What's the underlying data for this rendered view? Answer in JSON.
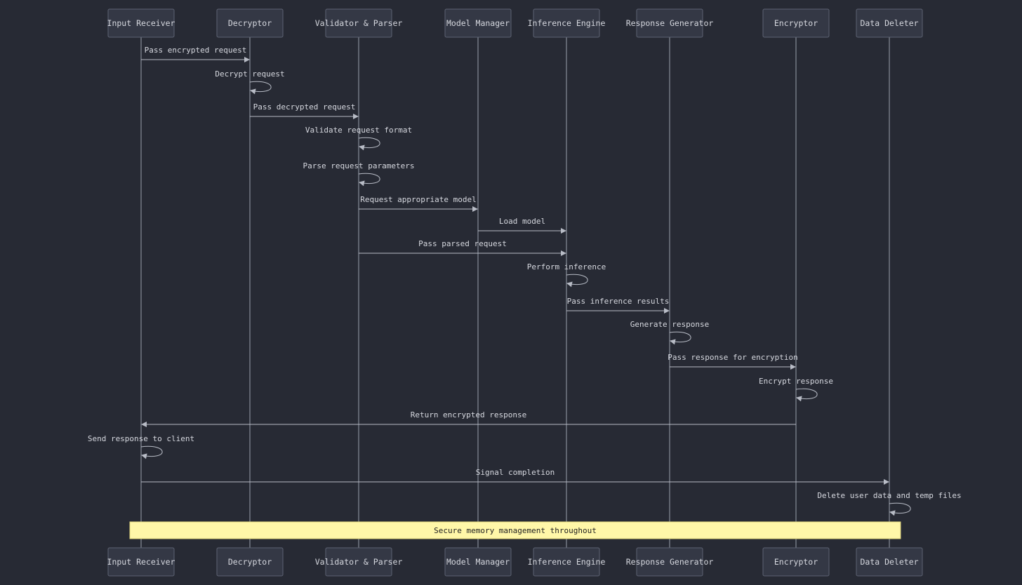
{
  "participants": [
    {
      "id": "input-receiver",
      "label": "Input Receiver"
    },
    {
      "id": "decryptor",
      "label": "Decryptor"
    },
    {
      "id": "validator-parser",
      "label": "Validator & Parser"
    },
    {
      "id": "model-manager",
      "label": "Model Manager"
    },
    {
      "id": "inference-engine",
      "label": "Inference Engine"
    },
    {
      "id": "response-generator",
      "label": "Response Generator"
    },
    {
      "id": "encryptor",
      "label": "Encryptor"
    },
    {
      "id": "data-deleter",
      "label": "Data Deleter"
    }
  ],
  "messages": [
    {
      "from": 0,
      "to": 1,
      "text": "Pass encrypted request"
    },
    {
      "from": 1,
      "to": 1,
      "text": "Decrypt request"
    },
    {
      "from": 1,
      "to": 2,
      "text": "Pass decrypted request"
    },
    {
      "from": 2,
      "to": 2,
      "text": "Validate request format"
    },
    {
      "from": 2,
      "to": 2,
      "text": "Parse request parameters"
    },
    {
      "from": 2,
      "to": 3,
      "text": "Request appropriate model"
    },
    {
      "from": 3,
      "to": 4,
      "text": "Load model"
    },
    {
      "from": 2,
      "to": 4,
      "text": "Pass parsed request"
    },
    {
      "from": 4,
      "to": 4,
      "text": "Perform inference"
    },
    {
      "from": 4,
      "to": 5,
      "text": "Pass inference results"
    },
    {
      "from": 5,
      "to": 5,
      "text": "Generate response"
    },
    {
      "from": 5,
      "to": 6,
      "text": "Pass response for encryption"
    },
    {
      "from": 6,
      "to": 6,
      "text": "Encrypt response"
    },
    {
      "from": 6,
      "to": 0,
      "text": "Return encrypted response"
    },
    {
      "from": 0,
      "to": 0,
      "text": "Send response to client"
    },
    {
      "from": 0,
      "to": 7,
      "text": "Signal completion"
    },
    {
      "from": 7,
      "to": 7,
      "text": "Delete user data and temp files"
    }
  ],
  "note": {
    "from": 0,
    "to": 7,
    "text": "Secure memory management throughout"
  },
  "colors": {
    "background": "#272a34",
    "actor_fill": "#343845",
    "note_fill": "#fff7a8"
  }
}
